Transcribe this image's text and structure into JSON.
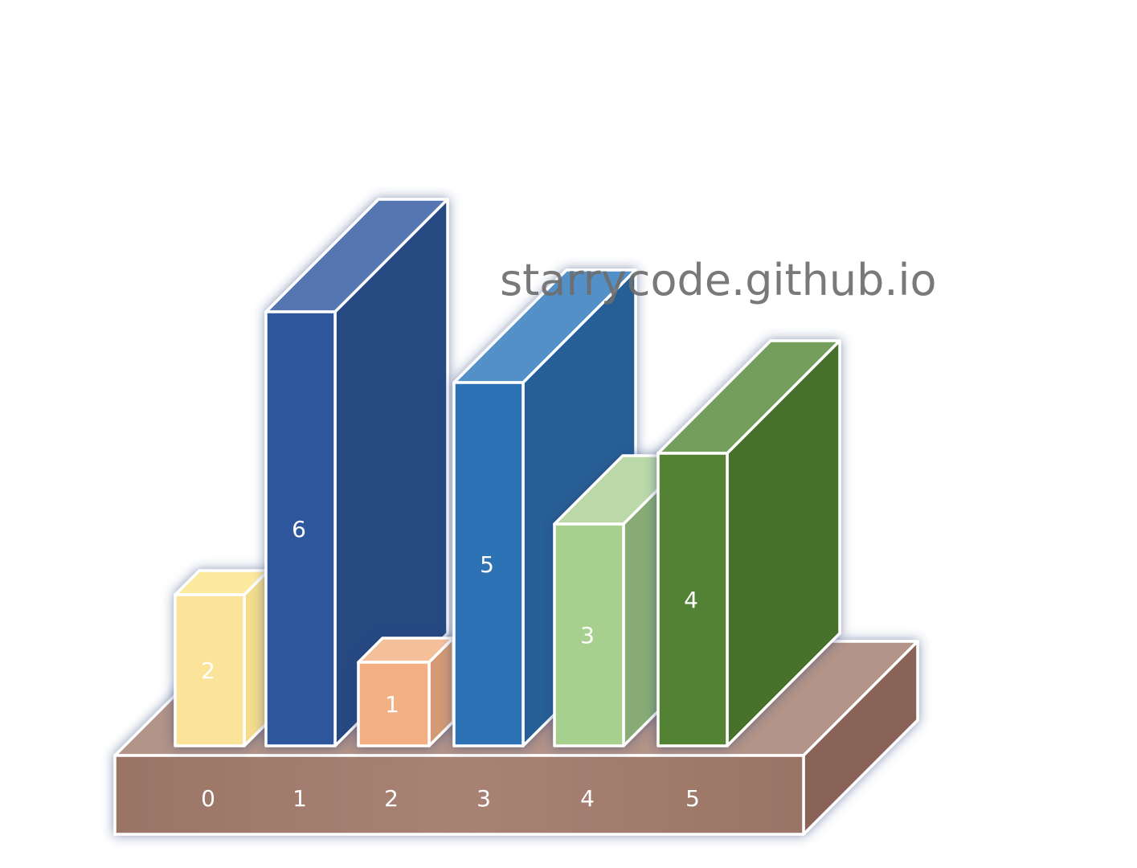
{
  "watermark": "starrycode.github.io",
  "chart_data": {
    "type": "bar",
    "categories": [
      "0",
      "1",
      "2",
      "3",
      "4",
      "5"
    ],
    "values": [
      2,
      6,
      1,
      5,
      3,
      4
    ],
    "colors": {
      "0": {
        "front": "#fbe49a",
        "top": "#fcea9e",
        "side": "#f4dc8c"
      },
      "1": {
        "front": "#2f579c",
        "top": "#5776b1",
        "side": "#264882"
      },
      "2": {
        "front": "#f3b084",
        "top": "#f4c09a",
        "side": "#d39a74"
      },
      "3": {
        "front": "#2e72b6",
        "top": "#5390c8",
        "side": "#255e96"
      },
      "4": {
        "front": "#a7d08e",
        "top": "#bad8a8",
        "side": "#88ab74"
      },
      "5": {
        "front": "#538234",
        "top": "#739e5c",
        "side": "#466f2a"
      }
    },
    "base_color": {
      "front": "#9c7566",
      "top": "#b39488",
      "side": "#8a6458"
    }
  }
}
